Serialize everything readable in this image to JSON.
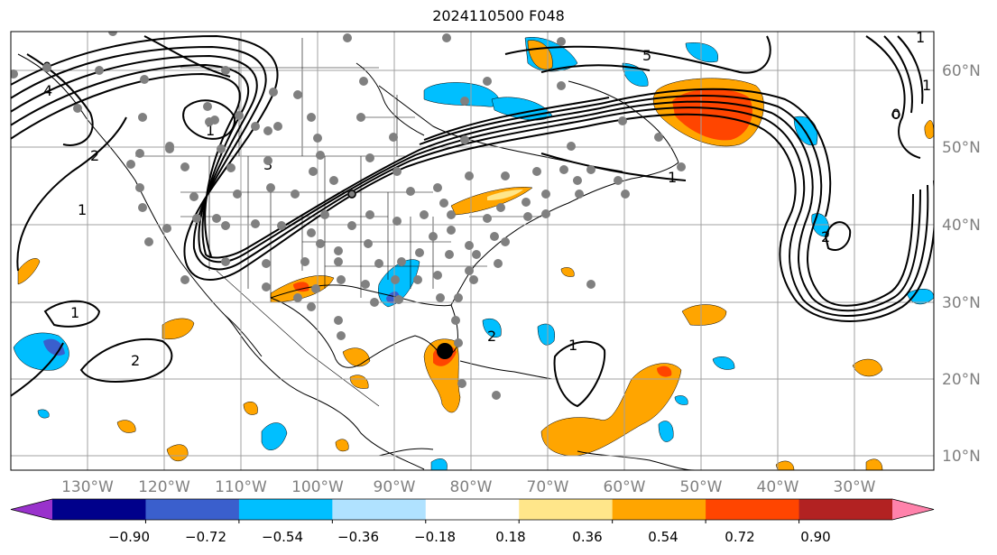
{
  "title": "2024110500 F048",
  "lon_labels": [
    "130°W",
    "120°W",
    "110°W",
    "100°W",
    "90°W",
    "80°W",
    "70°W",
    "60°W",
    "50°W",
    "40°W",
    "30°W"
  ],
  "lat_labels": [
    "60°N",
    "50°N",
    "40°N",
    "30°N",
    "20°N",
    "10°N"
  ],
  "contour_labels": [
    "5",
    "4",
    "3",
    "2",
    "1",
    "2",
    "1",
    "2",
    "1",
    "1",
    "1",
    "1",
    "4",
    "2",
    "2",
    "0",
    "0",
    "1"
  ],
  "colorbar": {
    "tick_labels": [
      "−0.90",
      "−0.72",
      "−0.54",
      "−0.36",
      "−0.18",
      "0.18",
      "0.36",
      "0.54",
      "0.72",
      "0.90"
    ],
    "colors": [
      "#9932cc",
      "#00008b",
      "#3a5fcd",
      "#00bfff",
      "#b0e2ff",
      "#ffffff",
      "#ffe68a",
      "#ffa500",
      "#ff4500",
      "#b22222",
      "#ff82ab"
    ],
    "extend": "both"
  },
  "marker": {
    "label": "storm-center",
    "lon": -84,
    "lat": 23.5
  }
}
